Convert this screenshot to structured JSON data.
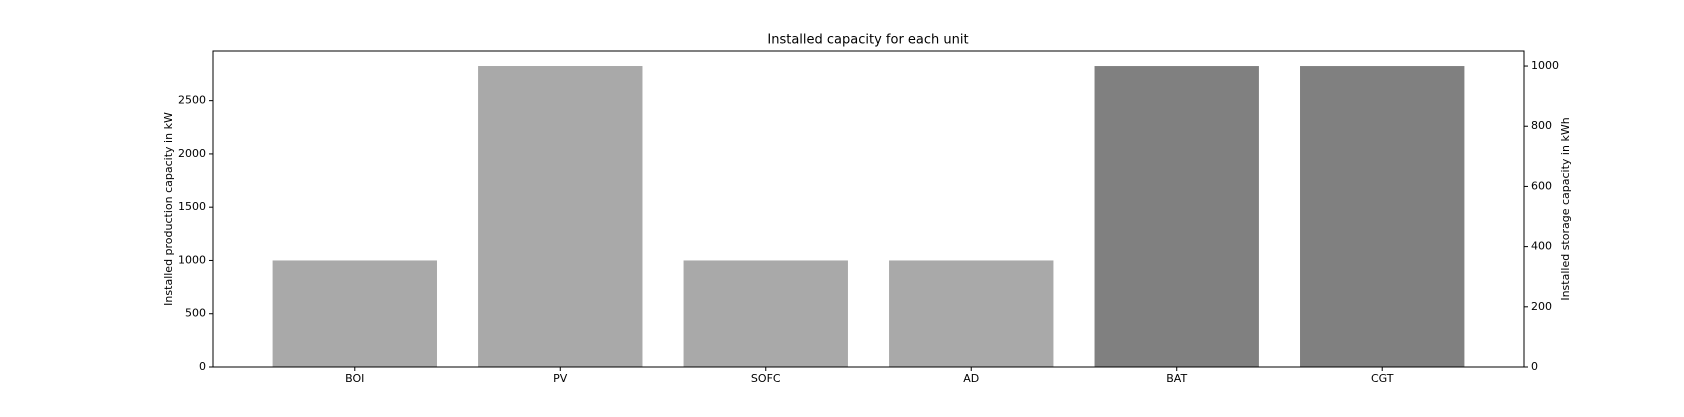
{
  "chart_data": {
    "type": "bar",
    "title": "Installed capacity for each unit",
    "ylabel": "Installed production capacity in kW",
    "y2label": "Installed storage capacity in kWh",
    "categories": [
      "BOI",
      "PV",
      "SOFC",
      "AD",
      "BAT",
      "CGT"
    ],
    "series": [
      {
        "color": "#a9a9a9",
        "values": [
          1000,
          2825,
          1000,
          1000,
          null,
          null
        ]
      },
      {
        "color": "#808080",
        "axis": "y2",
        "values": [
          null,
          null,
          null,
          null,
          1000,
          1000
        ]
      }
    ],
    "ylim": [
      0,
      2966
    ],
    "yticks": [
      0,
      500,
      1000,
      1500,
      2000,
      2500
    ],
    "y2lim": [
      0,
      1050
    ],
    "y2ticks": [
      0,
      200,
      400,
      600,
      800,
      1000
    ]
  }
}
